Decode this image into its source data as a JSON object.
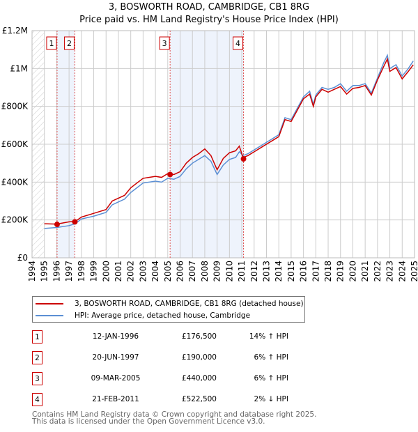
{
  "chart_data": {
    "type": "line",
    "title": "3, BOSWORTH ROAD, CAMBRIDGE, CB1 8RG",
    "subtitle": "Price paid vs. HM Land Registry's House Price Index (HPI)",
    "xlim": [
      1994,
      2025
    ],
    "ylim": [
      0,
      1200000
    ],
    "x_ticks": [
      "1994",
      "1995",
      "1996",
      "1997",
      "1998",
      "1999",
      "2000",
      "2001",
      "2002",
      "2003",
      "2004",
      "2005",
      "2006",
      "2007",
      "2008",
      "2009",
      "2010",
      "2011",
      "2012",
      "2013",
      "2014",
      "2015",
      "2016",
      "2017",
      "2018",
      "2019",
      "2020",
      "2021",
      "2022",
      "2023",
      "2024",
      "2025"
    ],
    "y_ticks": [
      {
        "v": 0,
        "label": "£0"
      },
      {
        "v": 200000,
        "label": "£200K"
      },
      {
        "v": 400000,
        "label": "£400K"
      },
      {
        "v": 600000,
        "label": "£600K"
      },
      {
        "v": 800000,
        "label": "£800K"
      },
      {
        "v": 1000000,
        "label": "£1M"
      },
      {
        "v": 1200000,
        "label": "£1.2M"
      }
    ],
    "grid": true,
    "series": [
      {
        "name": "3, BOSWORTH ROAD, CAMBRIDGE, CB1 8RG (detached house)",
        "color": "#cc0000",
        "x": [
          1995,
          1996,
          1997,
          1997.5,
          1998,
          1999,
          2000,
          2000.5,
          2001,
          2001.5,
          2002,
          2002.5,
          2003,
          2004,
          2004.5,
          2005,
          2005.5,
          2006,
          2006.5,
          2007,
          2007.5,
          2008,
          2008.5,
          2009,
          2009.5,
          2010,
          2010.5,
          2010.8,
          2011.1,
          2011.5,
          2012,
          2012.5,
          2013,
          2013.5,
          2014,
          2014.5,
          2015,
          2015.5,
          2016,
          2016.5,
          2016.8,
          2017,
          2017.5,
          2018,
          2018.5,
          2019,
          2019.5,
          2020,
          2020.5,
          2021,
          2021.5,
          2022,
          2022.5,
          2022.8,
          2023,
          2023.5,
          2024,
          2024.5,
          2024.9
        ],
        "y": [
          180000,
          178000,
          190000,
          192000,
          215000,
          235000,
          255000,
          300000,
          315000,
          330000,
          370000,
          395000,
          420000,
          430000,
          425000,
          445000,
          440000,
          455000,
          500000,
          530000,
          550000,
          575000,
          540000,
          465000,
          525000,
          555000,
          565000,
          590000,
          530000,
          540000,
          560000,
          580000,
          600000,
          620000,
          640000,
          730000,
          720000,
          780000,
          840000,
          865000,
          800000,
          850000,
          890000,
          875000,
          890000,
          905000,
          865000,
          895000,
          900000,
          910000,
          860000,
          940000,
          1010000,
          1050000,
          985000,
          1005000,
          945000,
          985000,
          1020000
        ]
      },
      {
        "name": "HPI: Average price, detached house, Cambridge",
        "color": "#5b8fd4",
        "x": [
          1995,
          1996,
          1997,
          1997.5,
          1998,
          1999,
          2000,
          2000.5,
          2001,
          2001.5,
          2002,
          2002.5,
          2003,
          2004,
          2004.5,
          2005,
          2005.5,
          2006,
          2006.5,
          2007,
          2007.5,
          2008,
          2008.5,
          2009,
          2009.5,
          2010,
          2010.5,
          2010.8,
          2011.1,
          2011.5,
          2012,
          2012.5,
          2013,
          2013.5,
          2014,
          2014.5,
          2015,
          2015.5,
          2016,
          2016.5,
          2016.8,
          2017,
          2017.5,
          2018,
          2018.5,
          2019,
          2019.5,
          2020,
          2020.5,
          2021,
          2021.5,
          2022,
          2022.5,
          2022.8,
          2023,
          2023.5,
          2024,
          2024.5,
          2024.9
        ],
        "y": [
          155000,
          160000,
          170000,
          180000,
          205000,
          220000,
          240000,
          280000,
          295000,
          310000,
          345000,
          370000,
          395000,
          405000,
          400000,
          420000,
          415000,
          430000,
          470000,
          500000,
          520000,
          540000,
          510000,
          440000,
          490000,
          520000,
          530000,
          560000,
          540000,
          550000,
          570000,
          590000,
          610000,
          630000,
          650000,
          740000,
          730000,
          790000,
          850000,
          880000,
          810000,
          860000,
          900000,
          890000,
          900000,
          920000,
          880000,
          910000,
          910000,
          920000,
          870000,
          950000,
          1030000,
          1070000,
          1000000,
          1020000,
          960000,
          1000000,
          1040000
        ]
      }
    ],
    "sales": [
      {
        "n": "1",
        "x": 1996.03,
        "y": 176500,
        "date": "12-JAN-1996",
        "price": "£176,500",
        "hpi": "14% ↑ HPI"
      },
      {
        "n": "2",
        "x": 1997.47,
        "y": 190000,
        "date": "20-JUN-1997",
        "price": "£190,000",
        "hpi": "6% ↑ HPI"
      },
      {
        "n": "3",
        "x": 2005.19,
        "y": 440000,
        "date": "09-MAR-2005",
        "price": "£440,000",
        "hpi": "6% ↑ HPI"
      },
      {
        "n": "4",
        "x": 2011.14,
        "y": 522500,
        "date": "21-FEB-2011",
        "price": "£522,500",
        "hpi": "2% ↓ HPI"
      }
    ],
    "legend_placement": "bottom"
  },
  "footer": {
    "line1": "Contains HM Land Registry data © Crown copyright and database right 2025.",
    "line2": "This data is licensed under the Open Government Licence v3.0."
  }
}
